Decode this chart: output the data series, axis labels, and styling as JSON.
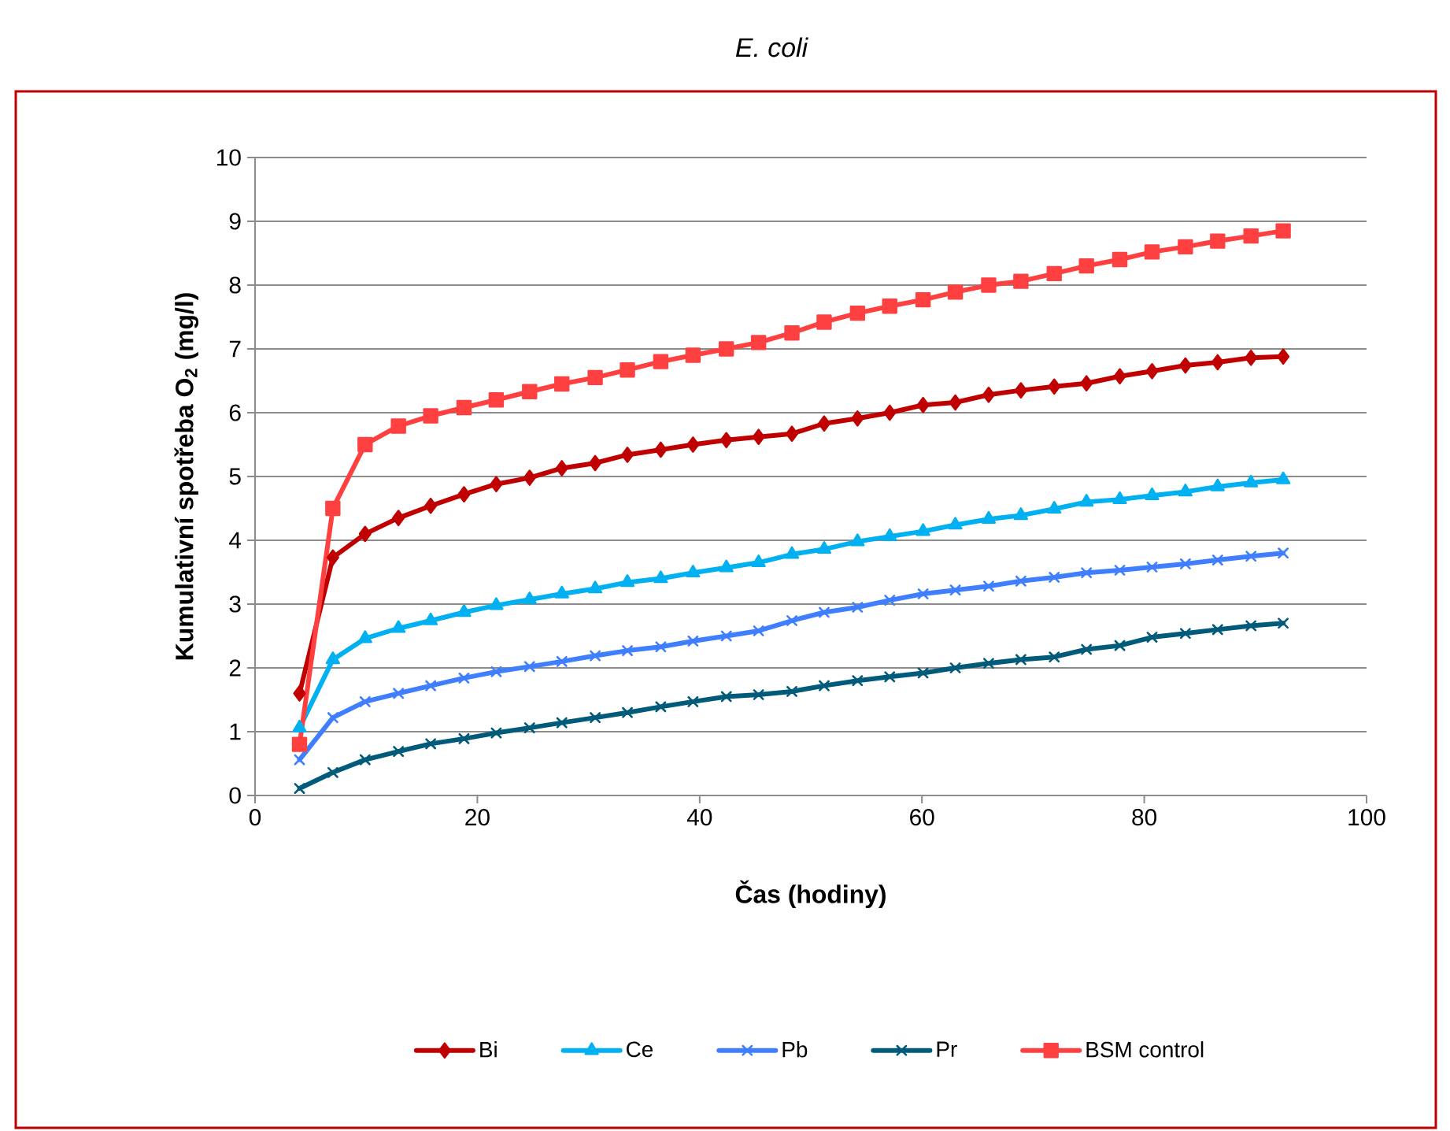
{
  "chart_data": {
    "type": "line",
    "title": "E. coli",
    "xlabel": "Čas (hodiny)",
    "ylabel": "Kumulativní spotřeba O$_{2}$ (mg/l)",
    "x": [
      4,
      7,
      9.9,
      12.9,
      15.8,
      18.8,
      21.7,
      24.7,
      27.6,
      30.6,
      33.5,
      36.5,
      39.4,
      42.4,
      45.3,
      48.3,
      51.2,
      54.2,
      57.1,
      60.1,
      63,
      66,
      68.9,
      71.9,
      74.8,
      77.8,
      80.7,
      83.7,
      86.6,
      89.6,
      92.5
    ],
    "series": [
      {
        "name": "Bi",
        "color": "#c00000",
        "marker": "diamond",
        "values": [
          1.6,
          3.73,
          4.1,
          4.35,
          4.54,
          4.72,
          4.88,
          4.98,
          5.13,
          5.21,
          5.34,
          5.42,
          5.5,
          5.57,
          5.62,
          5.67,
          5.83,
          5.91,
          6.0,
          6.12,
          6.16,
          6.28,
          6.35,
          6.41,
          6.46,
          6.57,
          6.65,
          6.74,
          6.79,
          6.86,
          6.88
        ]
      },
      {
        "name": "Ce",
        "color": "#00b0f0",
        "marker": "triangle",
        "values": [
          1.06,
          2.13,
          2.46,
          2.62,
          2.74,
          2.87,
          2.98,
          3.07,
          3.16,
          3.24,
          3.34,
          3.4,
          3.49,
          3.57,
          3.65,
          3.78,
          3.86,
          3.98,
          4.06,
          4.14,
          4.24,
          4.33,
          4.39,
          4.49,
          4.6,
          4.64,
          4.7,
          4.76,
          4.84,
          4.9,
          4.95
        ]
      },
      {
        "name": "Pb",
        "color": "#3f7fff",
        "marker": "cross",
        "values": [
          0.56,
          1.22,
          1.47,
          1.6,
          1.72,
          1.84,
          1.94,
          2.02,
          2.1,
          2.19,
          2.27,
          2.33,
          2.42,
          2.5,
          2.58,
          2.74,
          2.87,
          2.95,
          3.06,
          3.16,
          3.22,
          3.28,
          3.36,
          3.42,
          3.49,
          3.53,
          3.58,
          3.63,
          3.69,
          3.75,
          3.8
        ]
      },
      {
        "name": "Pr",
        "color": "#005b7a",
        "marker": "cross",
        "values": [
          0.11,
          0.36,
          0.56,
          0.69,
          0.81,
          0.89,
          0.98,
          1.06,
          1.14,
          1.22,
          1.3,
          1.39,
          1.47,
          1.55,
          1.58,
          1.63,
          1.72,
          1.8,
          1.86,
          1.92,
          2.0,
          2.07,
          2.13,
          2.17,
          2.29,
          2.35,
          2.48,
          2.54,
          2.6,
          2.66,
          2.7
        ]
      },
      {
        "name": "BSM control",
        "color": "#ff4040",
        "marker": "square",
        "values": [
          0.8,
          4.5,
          5.5,
          5.79,
          5.95,
          6.08,
          6.2,
          6.33,
          6.45,
          6.55,
          6.67,
          6.8,
          6.9,
          7.0,
          7.1,
          7.25,
          7.42,
          7.56,
          7.67,
          7.77,
          7.89,
          8.0,
          8.06,
          8.18,
          8.3,
          8.4,
          8.52,
          8.6,
          8.69,
          8.77,
          8.85
        ]
      }
    ],
    "xlim": [
      0,
      100
    ],
    "xticks": [
      0,
      20,
      40,
      60,
      80,
      100
    ],
    "ylim": [
      0,
      10
    ],
    "yticks": [
      0,
      1,
      2,
      3,
      4,
      5,
      6,
      7,
      8,
      9,
      10
    ],
    "grid": "y",
    "legend": "bottom",
    "line_style": "solid"
  }
}
